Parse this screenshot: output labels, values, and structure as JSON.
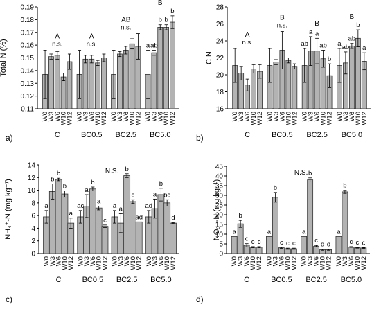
{
  "chart_data": [
    {
      "panel": "a)",
      "type": "bar",
      "ylabel": "Total N (%)",
      "ylim": [
        0.11,
        0.19
      ],
      "yticks": [
        0.11,
        0.12,
        0.13,
        0.14,
        0.15,
        0.16,
        0.17,
        0.18,
        0.19
      ],
      "tick_decimals": 2,
      "categories": [
        "W0",
        "W3",
        "W6",
        "W10",
        "W12"
      ],
      "groups": [
        {
          "name": "C",
          "values": [
            0.137,
            0.151,
            0.152,
            0.135,
            0.147
          ],
          "errors": [
            0.019,
            0.002,
            0.003,
            0.003,
            0.006
          ],
          "letters": [
            "",
            "",
            "",
            "",
            ""
          ],
          "header": [
            "A",
            "n.s."
          ]
        },
        {
          "name": "BC0.5",
          "values": [
            0.137,
            0.149,
            0.149,
            0.146,
            0.15
          ],
          "errors": [
            0.019,
            0.003,
            0.003,
            0.002,
            0.003
          ],
          "letters": [
            "",
            "",
            "",
            "",
            ""
          ],
          "header": [
            "A",
            "n.s."
          ]
        },
        {
          "name": "BC2.5",
          "values": [
            0.137,
            0.153,
            0.156,
            0.161,
            0.159
          ],
          "errors": [
            0.019,
            0.002,
            0.003,
            0.004,
            0.01
          ],
          "letters": [
            "",
            "",
            "",
            "",
            ""
          ],
          "header": [
            "AB",
            "n.s."
          ]
        },
        {
          "name": "BC5.0",
          "values": [
            0.137,
            0.154,
            0.174,
            0.174,
            0.178
          ],
          "errors": [
            0.019,
            0.002,
            0.002,
            0.002,
            0.005
          ],
          "letters": [
            "a",
            "ab",
            "b",
            "b",
            "b"
          ],
          "header": [
            "B",
            ""
          ]
        }
      ],
      "annotation": ""
    },
    {
      "panel": "b)",
      "type": "bar",
      "ylabel": "C:N",
      "ylim": [
        16,
        28
      ],
      "yticks": [
        16,
        18,
        20,
        22,
        24,
        26,
        28
      ],
      "tick_decimals": 0,
      "categories": [
        "W0",
        "W3",
        "W6",
        "W10",
        "W12"
      ],
      "groups": [
        {
          "name": "C",
          "values": [
            21.1,
            20.2,
            18.8,
            20.7,
            20.4
          ],
          "errors": [
            2.0,
            0.8,
            0.7,
            0.5,
            0.8
          ],
          "letters": [
            "",
            "",
            "",
            "",
            ""
          ],
          "header": [
            "A",
            "n.s."
          ]
        },
        {
          "name": "BC0.5",
          "values": [
            21.1,
            21.5,
            22.9,
            21.7,
            21.0
          ],
          "errors": [
            2.0,
            0.3,
            2.2,
            0.3,
            0.3
          ],
          "letters": [
            "",
            "",
            "",
            "",
            ""
          ],
          "header": [
            "B",
            "n.s."
          ]
        },
        {
          "name": "BC2.5",
          "values": [
            21.1,
            22.8,
            22.8,
            21.9,
            19.9
          ],
          "errors": [
            2.0,
            1.7,
            1.5,
            1.0,
            1.4
          ],
          "letters": [
            "ab",
            "a",
            "a",
            "ab",
            "b"
          ],
          "header": [
            "B",
            ""
          ]
        },
        {
          "name": "BC5.0",
          "values": [
            21.1,
            21.4,
            23.4,
            24.3,
            21.6
          ],
          "errors": [
            2.0,
            1.3,
            0.3,
            1.0,
            1.0
          ],
          "letters": [
            "a",
            "ab",
            "ab",
            "b",
            "a"
          ],
          "header": [
            "B",
            ""
          ]
        }
      ],
      "annotation": ""
    },
    {
      "panel": "c)",
      "type": "bar",
      "ylabel": "NH₄⁺-N (mg kg⁻¹)",
      "ylim": [
        0,
        14
      ],
      "yticks": [
        0,
        2,
        4,
        6,
        8,
        10,
        12,
        14
      ],
      "tick_decimals": 0,
      "categories": [
        "W0",
        "W3",
        "W6",
        "W10",
        "W12"
      ],
      "groups": [
        {
          "name": "C",
          "values": [
            5.8,
            9.8,
            11.7,
            9.4,
            4.8
          ],
          "errors": [
            1.0,
            1.2,
            0.2,
            0.5,
            0.8
          ],
          "letters": [
            "a",
            "b",
            "b",
            "b",
            "a"
          ],
          "header": [
            "",
            ""
          ]
        },
        {
          "name": "BC0.5",
          "values": [
            5.8,
            7.5,
            10.2,
            7.2,
            4.3
          ],
          "errors": [
            1.0,
            1.8,
            0.3,
            0.3,
            0.2
          ],
          "letters": [
            "ac",
            "a",
            "b",
            "a",
            "c"
          ],
          "header": [
            "",
            ""
          ]
        },
        {
          "name": "BC2.5",
          "values": [
            5.8,
            4.8,
            12.3,
            8.2,
            5.0
          ],
          "errors": [
            1.0,
            1.5,
            0.3,
            0.3,
            0.0
          ],
          "letters": [
            "a",
            "a",
            "b",
            "c",
            "ad"
          ],
          "header": [
            "",
            ""
          ]
        },
        {
          "name": "BC5.0",
          "values": [
            5.8,
            7.1,
            9.3,
            8.0,
            4.8
          ],
          "errors": [
            1.0,
            1.5,
            1.0,
            0.5,
            0.1
          ],
          "letters": [
            "ad",
            "a",
            "b",
            "bc",
            "d"
          ],
          "header": [
            "",
            ""
          ]
        }
      ],
      "annotation": "N.S."
    },
    {
      "panel": "d)",
      "type": "bar",
      "ylabel": "NO₃⁻-N (mg kg⁻¹)",
      "ylim": [
        0,
        45
      ],
      "yticks": [
        0,
        5,
        10,
        15,
        20,
        25,
        30,
        35,
        40,
        45
      ],
      "tick_decimals": 0,
      "categories": [
        "W0",
        "W3",
        "W6",
        "W10",
        "W12"
      ],
      "groups": [
        {
          "name": "C",
          "values": [
            8.8,
            15.3,
            4.3,
            3.3,
            3.3
          ],
          "errors": [
            0.0,
            1.8,
            0.8,
            0.3,
            0.3
          ],
          "letters": [
            "a",
            "b",
            "c",
            "c",
            "c"
          ],
          "header": [
            "",
            ""
          ]
        },
        {
          "name": "BC0.5",
          "values": [
            8.8,
            29.0,
            3.0,
            2.5,
            2.5
          ],
          "errors": [
            0.0,
            2.5,
            0.3,
            0.3,
            0.3
          ],
          "letters": [
            "a",
            "b",
            "c",
            "c",
            "c"
          ],
          "header": [
            "",
            ""
          ]
        },
        {
          "name": "BC2.5",
          "values": [
            8.8,
            38.0,
            3.8,
            2.0,
            2.0
          ],
          "errors": [
            0.0,
            1.0,
            0.4,
            0.3,
            0.3
          ],
          "letters": [
            "a",
            "b",
            "c",
            "d",
            "d"
          ],
          "header": [
            "",
            ""
          ]
        },
        {
          "name": "BC5.0",
          "values": [
            8.8,
            31.8,
            3.4,
            3.0,
            2.9
          ],
          "errors": [
            0.0,
            0.8,
            0.2,
            0.2,
            0.2
          ],
          "letters": [
            "a",
            "b",
            "c",
            "c",
            "c"
          ],
          "header": [
            "",
            ""
          ]
        }
      ],
      "annotation": "N.S."
    }
  ]
}
